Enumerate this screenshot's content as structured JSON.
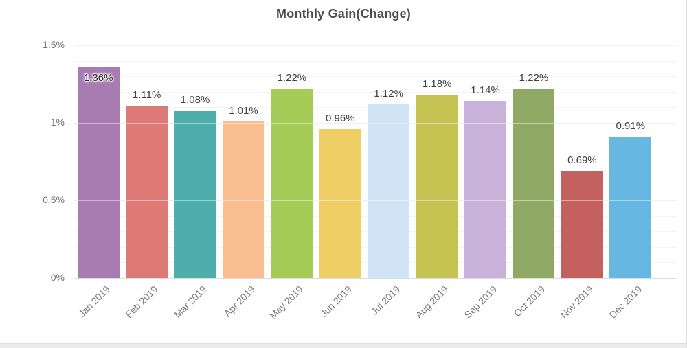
{
  "page": {
    "title": "Monthly Gain(Change)"
  },
  "colors": {
    "title_text": "#4c4c4c",
    "value_label_text": "#3f3f3f",
    "axis_label_text": "#7a7a7a",
    "major_gridline": "#e4e4e4",
    "minor_gridline": "#f4f4f4",
    "bottom_bar": "#ececec",
    "right_border": "#dbe0e4"
  },
  "chart_data": {
    "type": "bar",
    "title": "Monthly Gain(Change)",
    "categories": [
      "Jan 2019",
      "Feb 2019",
      "Mar 2019",
      "Apr 2019",
      "May 2019",
      "Jun 2019",
      "Jul 2019",
      "Aug 2019",
      "Sep 2019",
      "Oct 2019",
      "Nov 2019",
      "Dec 2019"
    ],
    "values": [
      1.36,
      1.11,
      1.08,
      1.01,
      1.22,
      0.96,
      1.12,
      1.18,
      1.14,
      1.22,
      0.69,
      0.91
    ],
    "value_labels": [
      "1.36%",
      "1.11%",
      "1.08%",
      "1.01%",
      "1.22%",
      "0.96%",
      "1.12%",
      "1.18%",
      "1.14%",
      "1.22%",
      "0.69%",
      "0.91%"
    ],
    "bar_colors": [
      "#a87cb2",
      "#dd7a76",
      "#4daeab",
      "#f9bd90",
      "#a6cc58",
      "#efce65",
      "#d0e4f6",
      "#c5c351",
      "#c9b2d9",
      "#90aa66",
      "#c4615f",
      "#67b7e3"
    ],
    "first_label_inside_bar": true,
    "xlabel": "",
    "ylabel": "",
    "ylim": [
      0,
      1.5
    ],
    "y_ticks": [
      {
        "value": 0,
        "label": "0%"
      },
      {
        "value": 0.5,
        "label": "0.5%"
      },
      {
        "value": 1,
        "label": "1%"
      },
      {
        "value": 1.5,
        "label": "1.5%"
      }
    ],
    "minor_grid_step": 0.1,
    "grid": "horizontal",
    "legend": "none",
    "x_label_rotation_deg": -45
  }
}
